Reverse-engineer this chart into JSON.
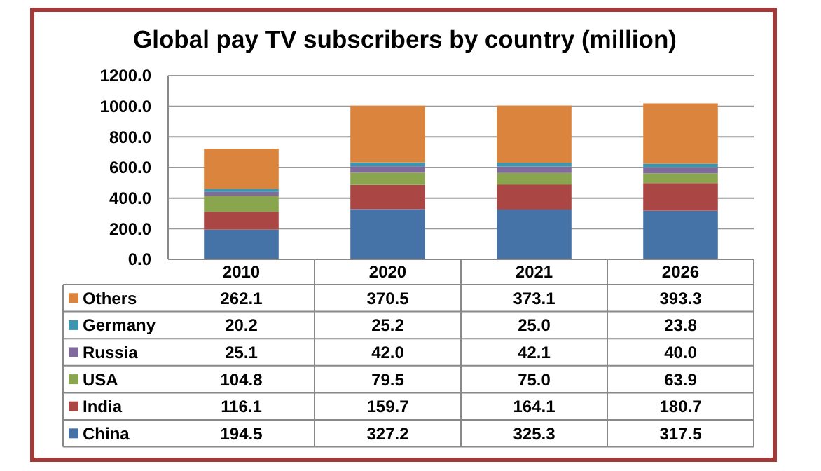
{
  "chart_data": {
    "type": "bar",
    "title": "Global pay TV subscribers by country (million)",
    "categories": [
      "2010",
      "2020",
      "2021",
      "2026"
    ],
    "stacked": true,
    "legend": "bottom",
    "grid": "y",
    "ylim": [
      0,
      1200
    ],
    "yticks": [
      {
        "value": 0,
        "label": "0.0"
      },
      {
        "value": 200,
        "label": "200.0"
      },
      {
        "value": 400,
        "label": "400.0"
      },
      {
        "value": 600,
        "label": "600.0"
      },
      {
        "value": 800,
        "label": "800.0"
      },
      {
        "value": 1000,
        "label": "1000.0"
      },
      {
        "value": 1200,
        "label": "1200.0"
      }
    ],
    "series": [
      {
        "name": "China",
        "color": "#4572a7",
        "values": [
          194.5,
          327.2,
          325.3,
          317.5
        ],
        "value_labels": [
          "194.5",
          "327.2",
          "325.3",
          "317.5"
        ]
      },
      {
        "name": "India",
        "color": "#aa4643",
        "values": [
          116.1,
          159.7,
          164.1,
          180.7
        ],
        "value_labels": [
          "116.1",
          "159.7",
          "164.1",
          "180.7"
        ]
      },
      {
        "name": "USA",
        "color": "#89a54e",
        "values": [
          104.8,
          79.5,
          75.0,
          63.9
        ],
        "value_labels": [
          "104.8",
          "79.5",
          "75.0",
          "63.9"
        ]
      },
      {
        "name": "Russia",
        "color": "#80699b",
        "values": [
          25.1,
          42.0,
          42.1,
          40.0
        ],
        "value_labels": [
          "25.1",
          "42.0",
          "42.1",
          "40.0"
        ]
      },
      {
        "name": "Germany",
        "color": "#3d96ae",
        "values": [
          20.2,
          25.2,
          25.0,
          23.8
        ],
        "value_labels": [
          "20.2",
          "25.2",
          "25.0",
          "23.8"
        ]
      },
      {
        "name": "Others",
        "color": "#db843d",
        "values": [
          262.1,
          370.5,
          373.1,
          393.3
        ],
        "value_labels": [
          "262.1",
          "370.5",
          "373.1",
          "393.3"
        ]
      }
    ]
  }
}
